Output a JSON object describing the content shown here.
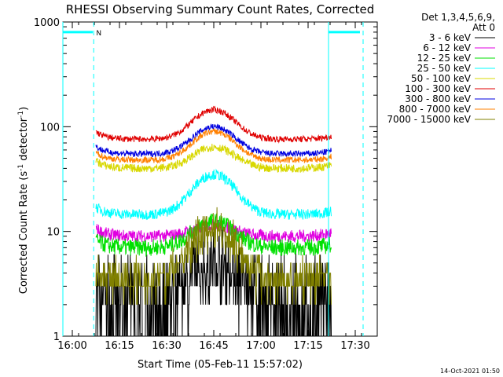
{
  "chart_data": {
    "type": "line",
    "title": "RHESSI Observing Summary Count Rates, Corrected",
    "xlabel": "Start Time (05-Feb-11 15:57:02)",
    "ylabel": "Corrected Count Rate (s⁻¹ detector⁻¹)",
    "ylabel_parts": {
      "a": "Corrected Count Rate (s",
      "sup1": "-1",
      "b": " detector",
      "sup2": "-1",
      "c": ")"
    },
    "y_scale": "log",
    "ylim": [
      1,
      1000
    ],
    "xlim_minutes": [
      -3,
      37
    ],
    "y_ticks": [
      {
        "v": 1,
        "label": "1"
      },
      {
        "v": 10,
        "label": "10"
      },
      {
        "v": 100,
        "label": "100"
      },
      {
        "v": 1000,
        "label": "1000"
      }
    ],
    "x_ticks": [
      {
        "min": 0,
        "label": "16:00"
      },
      {
        "min": 15,
        "label": "16:15"
      },
      {
        "min": 30,
        "label": "16:30"
      },
      {
        "min": 45,
        "label": "16:45"
      },
      {
        "min": 60,
        "label": "17:00"
      },
      {
        "min": 75,
        "label": "17:15"
      },
      {
        "min": 90,
        "label": "17:30"
      }
    ],
    "x_minutes_note": "minutes after 16:00",
    "legend_header": [
      "Det 1,3,4,5,6,9,",
      "Att 0"
    ],
    "legend_position": "right",
    "series": [
      {
        "name": "3 - 6 keV",
        "color": "#000000",
        "base": 2.5,
        "peak": 4.6,
        "noise": 0.25
      },
      {
        "name": "6 - 12 keV",
        "color": "#e000e0",
        "base": 9.0,
        "peak": 11.5,
        "noise": 0.06
      },
      {
        "name": "12 - 25 keV",
        "color": "#00e000",
        "base": 7.0,
        "peak": 12.5,
        "noise": 0.08
      },
      {
        "name": "25 - 50 keV",
        "color": "#00ffff",
        "base": 14.5,
        "peak": 35,
        "noise": 0.05
      },
      {
        "name": "50 - 100 keV",
        "color": "#d8d800",
        "base": 40,
        "peak": 64,
        "noise": 0.04
      },
      {
        "name": "100 - 300 keV",
        "color": "#e00000",
        "base": 76,
        "peak": 145,
        "noise": 0.03
      },
      {
        "name": "300 - 800 keV",
        "color": "#0000e0",
        "base": 55,
        "peak": 100,
        "noise": 0.03
      },
      {
        "name": "800 - 7000 keV",
        "color": "#ff8000",
        "base": 48,
        "peak": 90,
        "noise": 0.03
      },
      {
        "name": "7000 - 15000 keV",
        "color": "#808000",
        "base": 3.5,
        "peak": 11,
        "noise": 0.12
      }
    ],
    "data_window_minutes": [
      7.5,
      82.5
    ],
    "peak_minute": 45,
    "markers": [
      {
        "type": "solid",
        "from_min": -3,
        "to_min": 6.5,
        "value": 800
      },
      {
        "type": "solid",
        "from_min": 81.5,
        "to_min": 91.5,
        "value": 800
      },
      {
        "type": "dashed_vertical",
        "min": 6.8
      },
      {
        "type": "solid_vertical",
        "min": 81.5
      },
      {
        "type": "dashed_vertical",
        "min": 92.5
      },
      {
        "type": "solid_vertical",
        "min": -3
      }
    ],
    "marker_label": "N",
    "marker_color": "#00ffff"
  },
  "timestamp": "14-Oct-2021 01:50"
}
